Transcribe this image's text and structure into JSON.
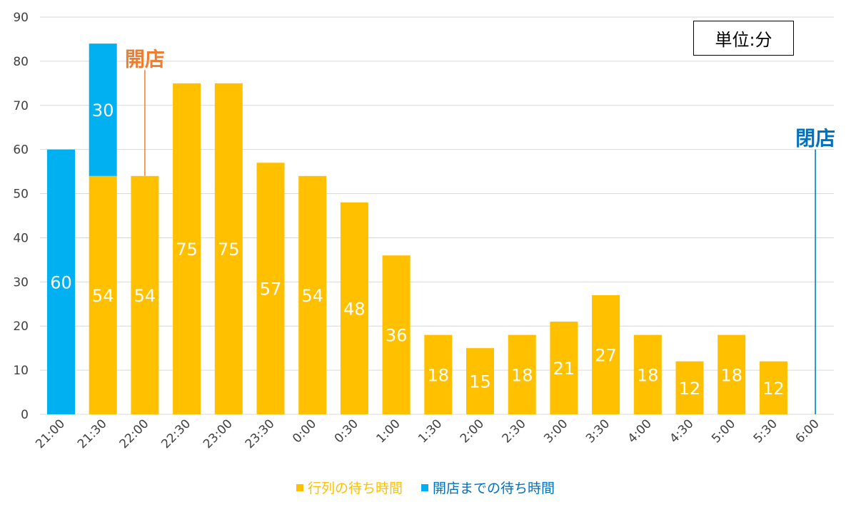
{
  "chart_data": {
    "type": "bar",
    "stacked": true,
    "categories": [
      "21:00",
      "21:30",
      "22:00",
      "22:30",
      "23:00",
      "23:30",
      "0:00",
      "0:30",
      "1:00",
      "1:30",
      "2:00",
      "2:30",
      "3:00",
      "3:30",
      "4:00",
      "4:30",
      "5:00",
      "5:30",
      "6:00"
    ],
    "series": [
      {
        "name": "行列の待ち時間",
        "color": "#FFC000",
        "label_color": "#FFFFFF",
        "values": [
          null,
          54,
          54,
          75,
          75,
          57,
          54,
          48,
          36,
          18,
          15,
          18,
          21,
          27,
          18,
          12,
          18,
          12,
          null
        ]
      },
      {
        "name": "開店までの待ち時間",
        "color": "#00B0F0",
        "label_color": "#FFFFFF",
        "values": [
          60,
          30,
          null,
          null,
          null,
          null,
          null,
          null,
          null,
          null,
          null,
          null,
          null,
          null,
          null,
          null,
          null,
          null,
          null
        ]
      }
    ],
    "ylim": [
      0,
      90
    ],
    "yticks": [
      0,
      10,
      20,
      30,
      40,
      50,
      60,
      70,
      80,
      90
    ],
    "grid": true,
    "legend_position": "bottom",
    "annotations": [
      {
        "text": "開店",
        "at_category": "22:00",
        "line_top_value": 78,
        "line_bottom_value": 54,
        "color": "#ED7D31"
      },
      {
        "text": "閉店",
        "at_category": "6:00",
        "line_top_value": 60,
        "line_bottom_value": 0,
        "color": "#0070C0"
      }
    ],
    "unit_label": "単位:分"
  }
}
